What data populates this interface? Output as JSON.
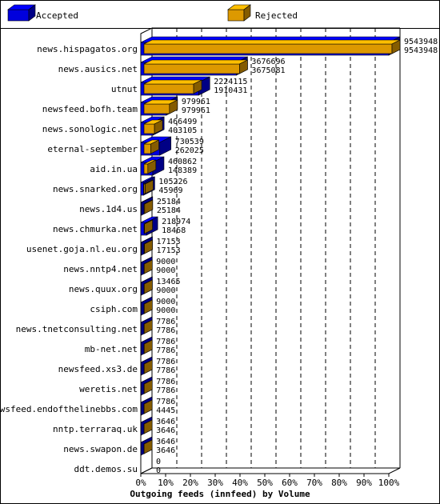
{
  "chart_data": {
    "type": "bar",
    "orientation": "horizontal",
    "style": "3d",
    "title": "",
    "xlabel": "Outgoing feeds (innfeed) by Volume",
    "ylabel": "",
    "xlim": [
      0,
      100
    ],
    "xticks": [
      "0%",
      "10%",
      "20%",
      "30%",
      "40%",
      "50%",
      "60%",
      "70%",
      "80%",
      "90%",
      "100%"
    ],
    "grid": "vertical dashed",
    "legend_position": "top",
    "categories": [
      "news.hispagatos.org",
      "news.ausics.net",
      "utnut",
      "newsfeed.bofh.team",
      "news.sonologic.net",
      "eternal-september",
      "aid.in.ua",
      "news.snarked.org",
      "news.1d4.us",
      "news.chmurka.net",
      "usenet.goja.nl.eu.org",
      "news.nntp4.net",
      "news.quux.org",
      "csiph.com",
      "news.tnetconsulting.net",
      "mb-net.net",
      "newsfeed.xs3.de",
      "weretis.net",
      "newsfeed.endofthelinebbs.com",
      "nntp.terraraq.uk",
      "news.swapon.de",
      "ddt.demos.su"
    ],
    "series": [
      {
        "name": "Accepted",
        "color": "#0000dd",
        "values": [
          9543948,
          3676696,
          2224115,
          979961,
          466499,
          730539,
          460862,
          105226,
          25184,
          218974,
          17153,
          9000,
          13465,
          9000,
          7786,
          7786,
          7786,
          7786,
          7786,
          3646,
          3646,
          0
        ]
      },
      {
        "name": "Rejected",
        "color": "#dd9900",
        "values": [
          9543948,
          3675081,
          1910431,
          979961,
          403105,
          262025,
          148389,
          45969,
          25184,
          18468,
          17153,
          9000,
          9000,
          9000,
          7786,
          7786,
          7786,
          7786,
          4445,
          3646,
          3646,
          0
        ]
      }
    ]
  }
}
